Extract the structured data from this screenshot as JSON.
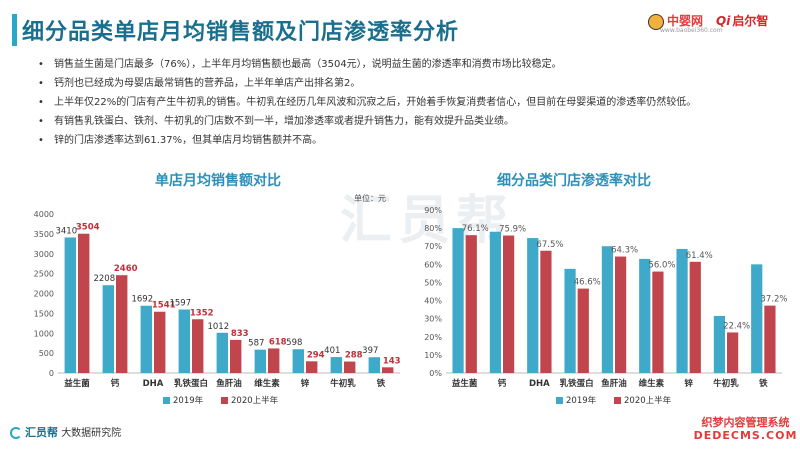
{
  "header": {
    "title": "细分品类单店月均销售额及门店渗透率分析",
    "logo_a": "中婴网",
    "logo_a_url": "www.baobei360.com",
    "logo_b": "启尔智",
    "logo_b_mark": "Qi"
  },
  "bullets": [
    "销售益生菌是门店最多（76%），上半年月均销售额也最高（3504元），说明益生菌的渗透率和消费市场比较稳定。",
    "钙剂也已经成为母婴店最常销售的营养品，上半年单店产出排名第2。",
    "上半年仅22%的门店有产生牛初乳的销售。牛初乳在经历几年风波和沉寂之后，开始着手恢复消费者信心，但目前在母婴渠道的渗透率仍然较低。",
    "有销售乳铁蛋白、铁剂、牛初乳的门店数不到一半，增加渗透率或者提升销售力，能有效提升品类业绩。",
    "锌的门店渗透率达到61.37%，但其单店月均销售额并不高。"
  ],
  "watermark": "汇员帮",
  "footer": {
    "brand": "汇员帮",
    "org": "大数据研究院"
  },
  "badge": {
    "line1": "织梦内容管理系统",
    "line2": "DEDECMS.COM"
  },
  "colors": {
    "series_2019": "#3fa9c9",
    "series_2020": "#c0454c"
  },
  "chart_data": [
    {
      "type": "bar",
      "title": "单店月均销售额对比",
      "unit": "单位：元",
      "categories": [
        "益生菌",
        "钙",
        "DHA",
        "乳铁蛋白",
        "鱼肝油",
        "维生素",
        "锌",
        "牛初乳",
        "铁"
      ],
      "series": [
        {
          "name": "2019年",
          "values": [
            3410,
            2208,
            1692,
            1597,
            1012,
            587,
            598,
            401,
            397
          ]
        },
        {
          "name": "2020上半年",
          "values": [
            3504,
            2460,
            1541,
            1352,
            833,
            618,
            294,
            288,
            143
          ]
        }
      ],
      "yticks": [
        "0",
        "500",
        "1000",
        "1500",
        "2000",
        "2500",
        "3000",
        "3500",
        "4000"
      ],
      "ylim": [
        0,
        4000
      ],
      "legend": "bottom"
    },
    {
      "type": "bar",
      "title": "细分品类门店渗透率对比",
      "categories": [
        "益生菌",
        "钙",
        "DHA",
        "乳铁蛋白",
        "鱼肝油",
        "维生素",
        "锌",
        "牛初乳",
        "铁"
      ],
      "series": [
        {
          "name": "2019年",
          "values": [
            80.0,
            78.0,
            74.5,
            57.5,
            70.0,
            63.0,
            68.5,
            31.5,
            60.0
          ]
        },
        {
          "name": "2020上半年",
          "values": [
            76.1,
            75.9,
            67.5,
            46.6,
            64.3,
            56.0,
            61.4,
            22.4,
            37.2
          ]
        }
      ],
      "labels_2020": [
        "76.1%",
        "75.9%",
        "67.5%",
        "46.6%",
        "64.3%",
        "56.0%",
        "61.4%",
        "22.4%",
        "37.2%"
      ],
      "yticks": [
        "0%",
        "10%",
        "20%",
        "30%",
        "40%",
        "50%",
        "60%",
        "70%",
        "80%",
        "90%"
      ],
      "ylim": [
        0,
        90
      ],
      "legend": "bottom"
    }
  ]
}
